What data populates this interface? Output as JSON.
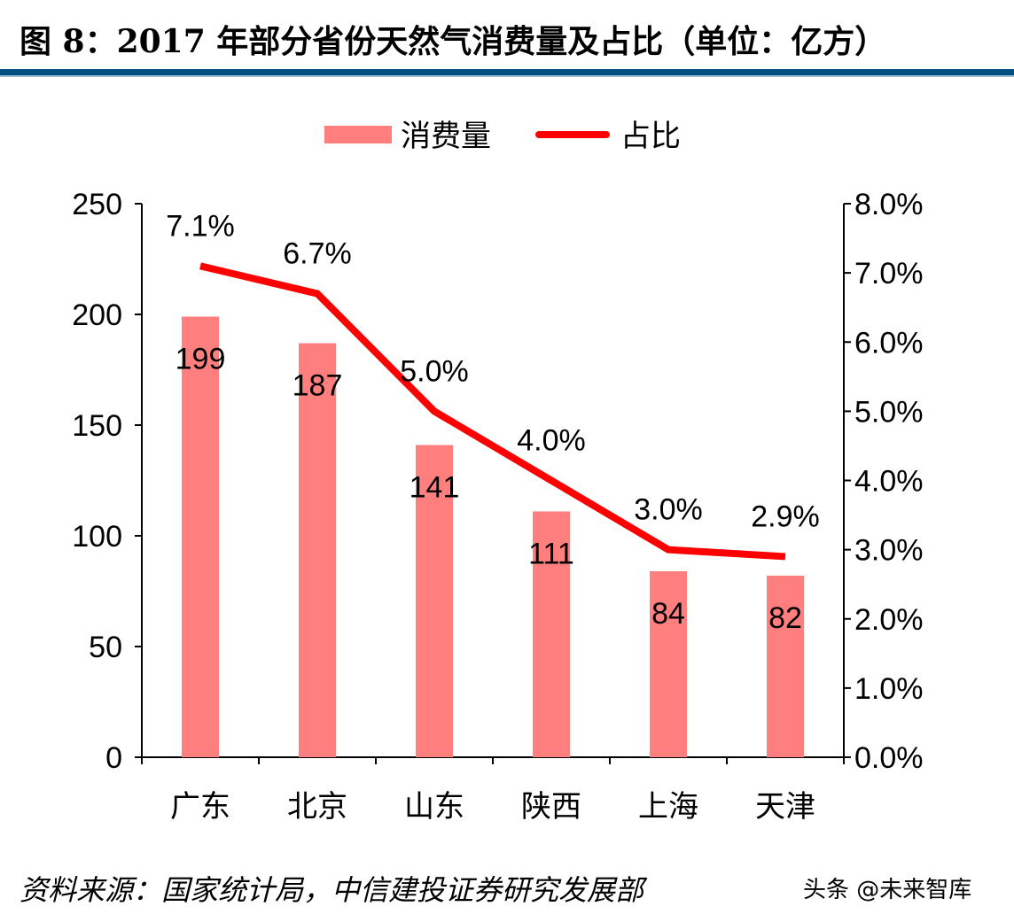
{
  "title": "图 8：2017 年部分省份天然气消费量及占比（单位：亿方）",
  "source": "资料来源：国家统计局，中信建投证券研究发展部",
  "watermark": "头条 @未来智库",
  "colors": {
    "bar": "#ff7f7f",
    "line": "#ff0000",
    "rule": "#004f80"
  },
  "chart_data": {
    "type": "bar+line",
    "categories": [
      "广东",
      "北京",
      "山东",
      "陕西",
      "上海",
      "天津"
    ],
    "series": [
      {
        "name": "消费量",
        "type": "bar",
        "axis": "left",
        "values": [
          199,
          187,
          141,
          111,
          84,
          82
        ],
        "labels": [
          "199",
          "187",
          "141",
          "111",
          "84",
          "82"
        ]
      },
      {
        "name": "占比",
        "type": "line",
        "axis": "right",
        "values": [
          7.1,
          6.7,
          5.0,
          4.0,
          3.0,
          2.9
        ],
        "labels": [
          "7.1%",
          "6.7%",
          "5.0%",
          "4.0%",
          "3.0%",
          "2.9%"
        ]
      }
    ],
    "left_axis": {
      "range": [
        0,
        250
      ],
      "ticks": [
        "0",
        "50",
        "100",
        "150",
        "200",
        "250"
      ]
    },
    "right_axis": {
      "range": [
        0,
        8
      ],
      "ticks": [
        "0.0%",
        "1.0%",
        "2.0%",
        "3.0%",
        "4.0%",
        "5.0%",
        "6.0%",
        "7.0%",
        "8.0%"
      ]
    },
    "legend_placement": "top-center",
    "grid": false
  }
}
